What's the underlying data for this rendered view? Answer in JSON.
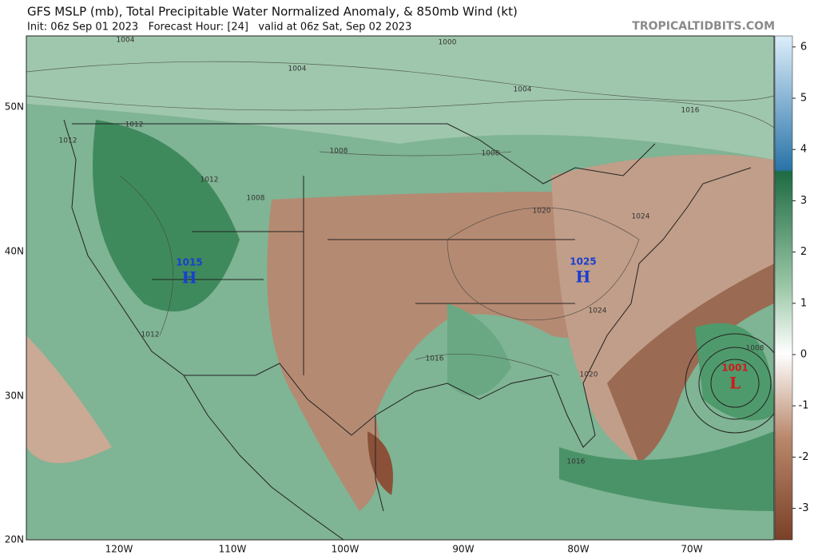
{
  "header": {
    "title": "GFS MSLP (mb), Total Precipitable Water Normalized Anomaly, & 850mb Wind (kt)",
    "subtitle": "Init: 06z Sep 01 2023   Forecast Hour: [24]   valid at 06z Sat, Sep 02 2023",
    "site": "TROPICALTIDBITS.COM"
  },
  "map": {
    "latitudes": [
      "50N",
      "40N",
      "30N",
      "20N"
    ],
    "longitudes": [
      "120W",
      "110W",
      "100W",
      "90W",
      "80W",
      "70W"
    ],
    "isobar_labels": [
      "1004",
      "1000",
      "1004",
      "1004",
      "1016",
      "1012",
      "1012",
      "1008",
      "1008",
      "1012",
      "1008",
      "1020",
      "1024",
      "1012",
      "1024",
      "1016",
      "1020",
      "1008",
      "1016"
    ],
    "centers": [
      {
        "pressure": "1015",
        "letter": "H"
      },
      {
        "pressure": "1025",
        "letter": "H"
      },
      {
        "pressure": "1001",
        "letter": "L"
      }
    ]
  },
  "colorbar": {
    "ticks": [
      6,
      5,
      4,
      3,
      2,
      1,
      0,
      -1,
      -2,
      -3
    ]
  }
}
